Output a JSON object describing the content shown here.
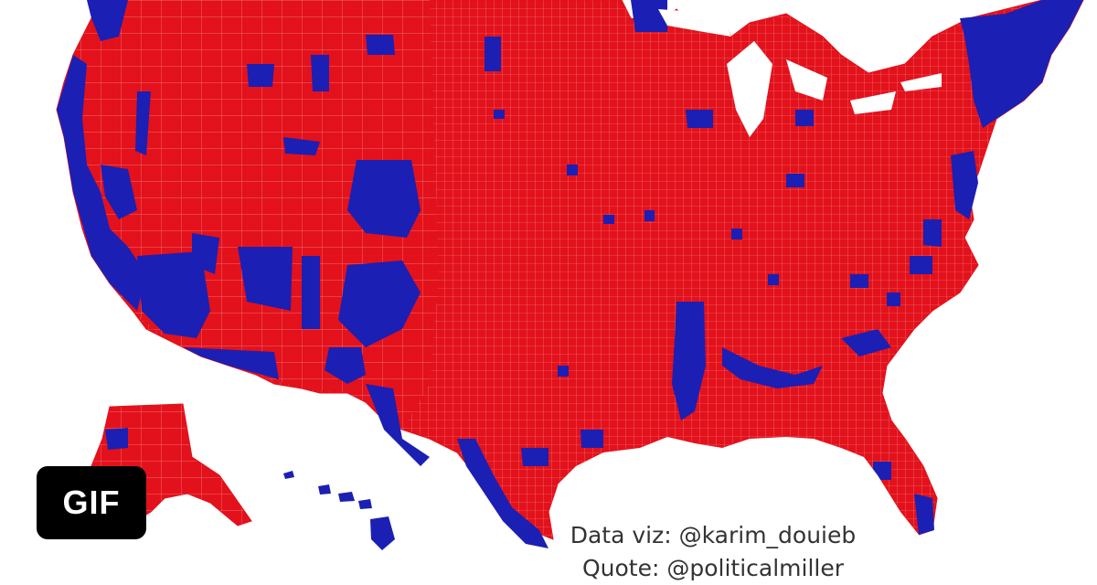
{
  "map": {
    "type": "choropleth",
    "region": "United States counties",
    "colors": {
      "republican": "#e3111b",
      "democrat": "#1c1fb3",
      "county_border": "#f08a8e",
      "background": "#ffffff"
    }
  },
  "credits": {
    "data_viz": "Data viz: @karim_douieb",
    "quote": "Quote: @politicalmiller"
  },
  "top_text_fragment": "",
  "badge": {
    "label": "GIF",
    "color": "#000000"
  }
}
